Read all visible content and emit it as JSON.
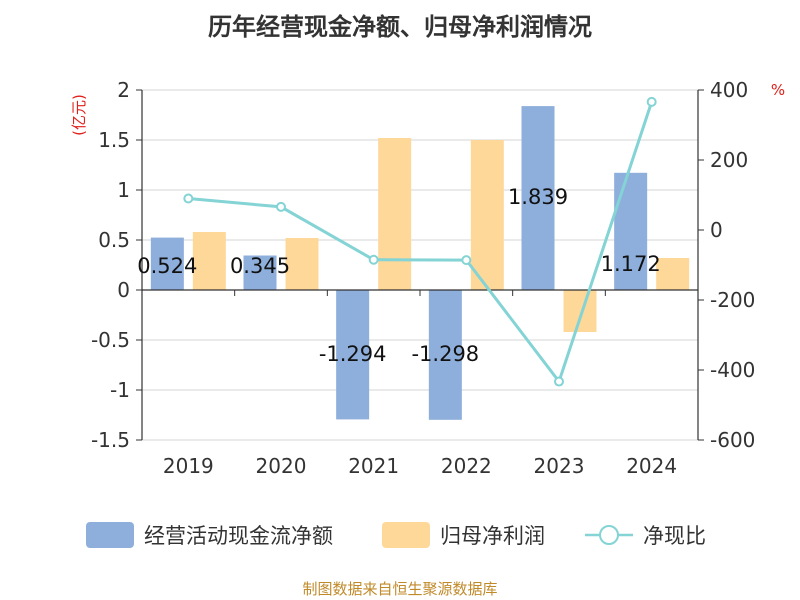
{
  "chart_data": {
    "type": "bar",
    "title": "历年经营现金净额、归母净利润情况",
    "categories": [
      "2019",
      "2020",
      "2021",
      "2022",
      "2023",
      "2024"
    ],
    "series": [
      {
        "name": "经营活动现金流净额",
        "type": "bar",
        "axis": "left",
        "color": "#8eaedb",
        "values": [
          0.524,
          0.345,
          -1.294,
          -1.298,
          1.839,
          1.172
        ],
        "labels": [
          "0.524",
          "0.345",
          "-1.294",
          "-1.298",
          "1.839",
          "1.172"
        ]
      },
      {
        "name": "归母净利润",
        "type": "bar",
        "axis": "left",
        "color": "#fed899",
        "values": [
          0.58,
          0.52,
          1.52,
          1.5,
          -0.42,
          0.32
        ]
      },
      {
        "name": "净现比",
        "type": "line",
        "axis": "right",
        "color": "#84d3d5",
        "values": [
          90,
          66,
          -85,
          -86,
          -433,
          366
        ]
      }
    ],
    "left_axis": {
      "unit": "(亿元)",
      "ylim": [
        -1.5,
        2
      ],
      "ticks": [
        "2",
        "1.5",
        "1",
        "0.5",
        "0",
        "-0.5",
        "-1",
        "-1.5"
      ]
    },
    "right_axis": {
      "unit": "%",
      "ylim": [
        -600,
        400
      ],
      "ticks": [
        "400",
        "200",
        "0",
        "-200",
        "-400",
        "-600"
      ]
    },
    "legend": [
      {
        "label": "经营活动现金流净额",
        "marker": "bar",
        "color": "#8eaedb"
      },
      {
        "label": "归母净利润",
        "marker": "bar",
        "color": "#fed899"
      },
      {
        "label": "净现比",
        "marker": "line",
        "color": "#84d3d5"
      }
    ],
    "grid": true,
    "source": "制图数据来自恒生聚源数据库"
  }
}
